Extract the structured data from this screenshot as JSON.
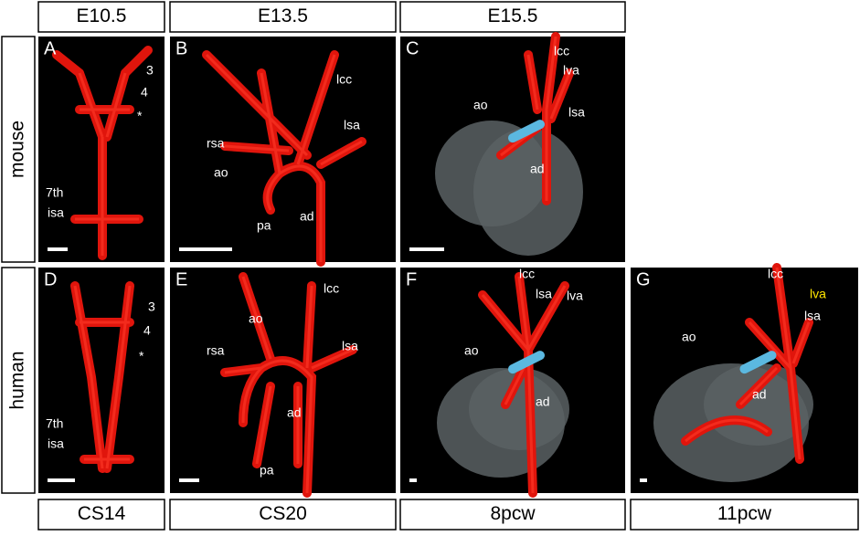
{
  "columns": [
    "E10.5",
    "E13.5",
    "E15.5"
  ],
  "rows": [
    "mouse",
    "human"
  ],
  "footer": [
    "CS14",
    "CS20",
    "8pcw",
    "11pcw"
  ],
  "panels": [
    {
      "letter": "A",
      "labels": [
        "3",
        "4",
        "*",
        "7th",
        "isa"
      ]
    },
    {
      "letter": "B",
      "labels": [
        "lcc",
        "lsa",
        "rsa",
        "ao",
        "ad",
        "pa"
      ]
    },
    {
      "letter": "C",
      "labels": [
        "lcc",
        "lva",
        "ao",
        "lsa",
        "ad"
      ]
    },
    {
      "letter": "D",
      "labels": [
        "3",
        "4",
        "*",
        "7th",
        "isa"
      ]
    },
    {
      "letter": "E",
      "labels": [
        "lcc",
        "ao",
        "rsa",
        "lsa",
        "ad",
        "pa"
      ]
    },
    {
      "letter": "F",
      "labels": [
        "lcc",
        "lsa",
        "lva",
        "ao",
        "ad"
      ]
    },
    {
      "letter": "G",
      "labels": [
        "lcc",
        "lva",
        "lsa",
        "ao",
        "ad"
      ]
    }
  ]
}
